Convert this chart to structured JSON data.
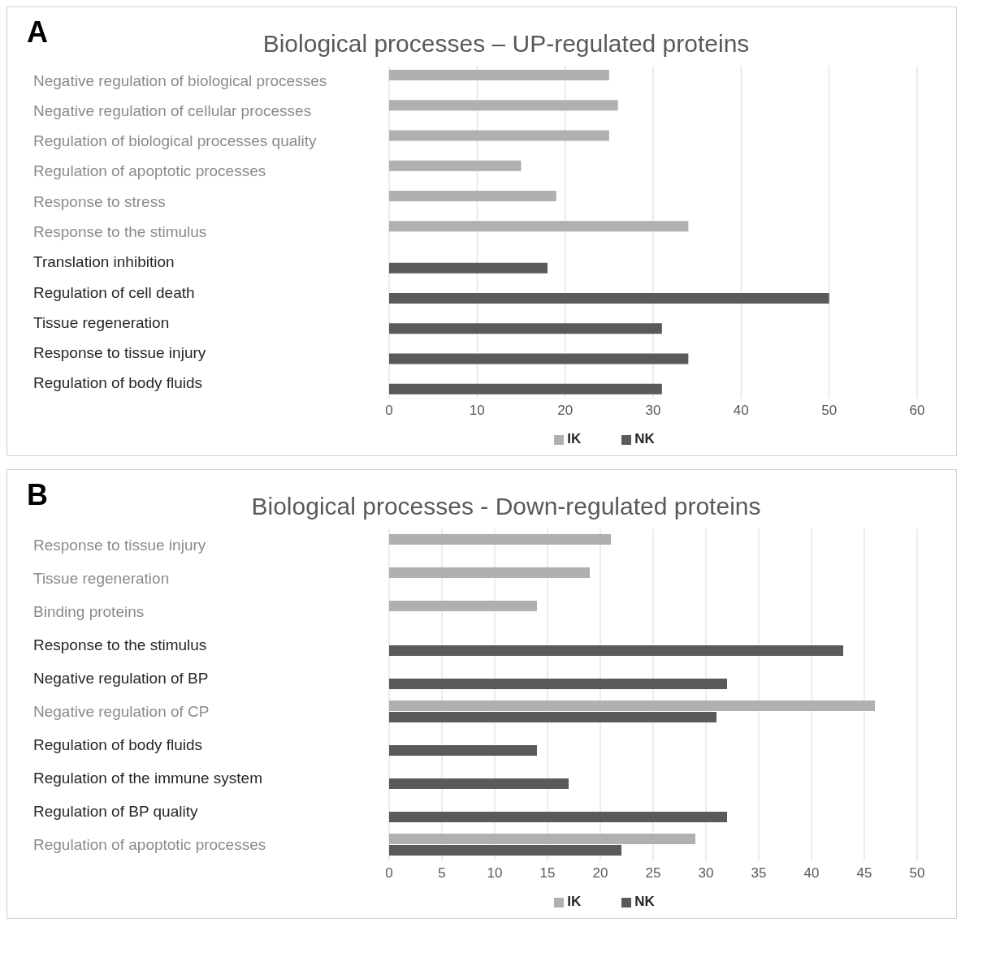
{
  "chart_data": [
    {
      "type": "bar",
      "orientation": "horizontal",
      "title": "Biological processes – UP-regulated proteins",
      "annotations": [
        "A"
      ],
      "categories": [
        "Negative regulation of biological processes",
        "Negative regulation of cellular processes",
        "Regulation of biological processes quality",
        "Regulation of apoptotic processes",
        "Response to stress",
        "Response to the stimulus",
        "Translation inhibition",
        "Regulation of cell death",
        "Tissue  regeneration",
        "Response to tissue injury",
        "Regulation of body fluids"
      ],
      "series": [
        {
          "name": "IK",
          "color": "#b0b0b0",
          "values": [
            25,
            26,
            25,
            15,
            19,
            34,
            null,
            null,
            null,
            null,
            null
          ]
        },
        {
          "name": "NK",
          "color": "#5a5a5a",
          "values": [
            null,
            null,
            null,
            null,
            null,
            null,
            18,
            50,
            31,
            34,
            31
          ]
        }
      ],
      "xlim": [
        0,
        60
      ],
      "xticks": [
        0,
        10,
        20,
        30,
        40,
        50,
        60
      ],
      "grid": "x",
      "legend": "bottom"
    },
    {
      "type": "bar",
      "orientation": "horizontal",
      "title": "Biological processes - Down-regulated proteins",
      "annotations": [
        "B"
      ],
      "categories": [
        "Response to tissue injury",
        "Tissue regeneration",
        "Binding proteins",
        "Response to the stimulus",
        "Negative regulation of BP",
        "Negative regulation of CP",
        "Regulation of body fluids",
        "Regulation of the immune system",
        "Regulation of BP quality",
        "Regulation of apoptotic processes"
      ],
      "series": [
        {
          "name": "IK",
          "color": "#b0b0b0",
          "values": [
            21,
            19,
            14,
            null,
            null,
            46,
            null,
            null,
            null,
            29
          ]
        },
        {
          "name": "NK",
          "color": "#5a5a5a",
          "values": [
            null,
            null,
            null,
            43,
            32,
            31,
            14,
            17,
            32,
            22
          ]
        }
      ],
      "xlim": [
        0,
        50
      ],
      "xticks": [
        0,
        5,
        10,
        15,
        20,
        25,
        30,
        35,
        40,
        45,
        50
      ],
      "grid": "x",
      "legend": "bottom"
    }
  ]
}
